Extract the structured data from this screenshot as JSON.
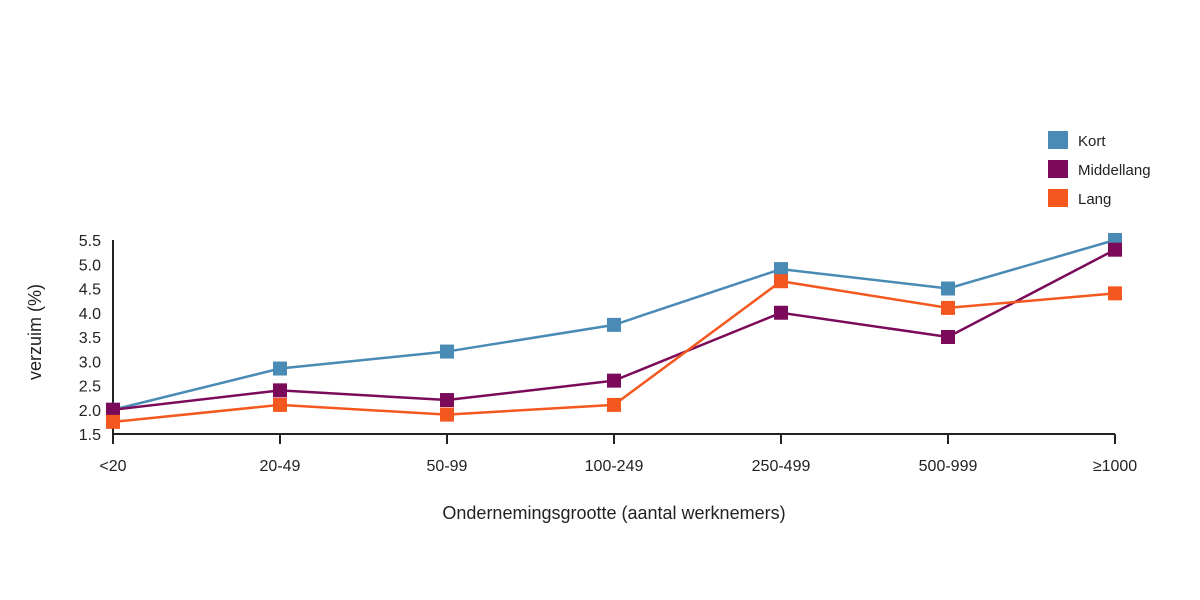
{
  "chart_data": {
    "type": "line",
    "xlabel": "Ondernemingsgrootte (aantal werknemers)",
    "ylabel": "verzuim (%)",
    "categories": [
      "<20",
      "20-49",
      "50-99",
      "100-249",
      "250-499",
      "500-999",
      "≥1000"
    ],
    "yticks": [
      "1.5",
      "2.0",
      "2.5",
      "3.0",
      "3.5",
      "4.0",
      "4.5",
      "5.0",
      "5.5"
    ],
    "ylim": [
      1.5,
      5.5
    ],
    "grid": false,
    "legend_position": "top-right",
    "series": [
      {
        "name": "Kort",
        "color": "#4a8bb5",
        "values": [
          2.0,
          2.85,
          3.2,
          3.75,
          4.9,
          4.5,
          5.5
        ]
      },
      {
        "name": "Middellang",
        "color": "#7b0b5a",
        "values": [
          2.0,
          2.4,
          2.2,
          2.6,
          4.0,
          3.5,
          5.3
        ]
      },
      {
        "name": "Lang",
        "color": "#f4581f",
        "values": [
          1.75,
          2.1,
          1.9,
          2.1,
          4.65,
          4.1,
          4.4
        ]
      }
    ]
  }
}
